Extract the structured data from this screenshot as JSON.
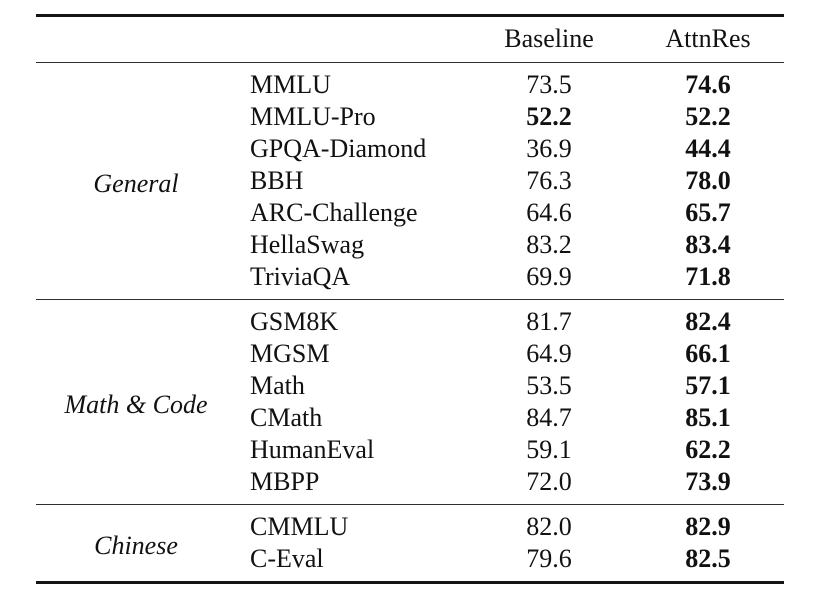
{
  "table": {
    "header": {
      "group_label": "",
      "benchmark_label": "",
      "baseline_label": "Baseline",
      "attnres_label": "AttnRes"
    },
    "sections": [
      {
        "group": "General",
        "rows": [
          {
            "name": "MMLU",
            "baseline": "73.5",
            "baseline_bold": false,
            "attnres": "74.6",
            "attnres_bold": true
          },
          {
            "name": "MMLU-Pro",
            "baseline": "52.2",
            "baseline_bold": true,
            "attnres": "52.2",
            "attnres_bold": true
          },
          {
            "name": "GPQA-Diamond",
            "baseline": "36.9",
            "baseline_bold": false,
            "attnres": "44.4",
            "attnres_bold": true
          },
          {
            "name": "BBH",
            "baseline": "76.3",
            "baseline_bold": false,
            "attnres": "78.0",
            "attnres_bold": true
          },
          {
            "name": "ARC-Challenge",
            "baseline": "64.6",
            "baseline_bold": false,
            "attnres": "65.7",
            "attnres_bold": true
          },
          {
            "name": "HellaSwag",
            "baseline": "83.2",
            "baseline_bold": false,
            "attnres": "83.4",
            "attnres_bold": true
          },
          {
            "name": "TriviaQA",
            "baseline": "69.9",
            "baseline_bold": false,
            "attnres": "71.8",
            "attnres_bold": true
          }
        ]
      },
      {
        "group": "Math & Code",
        "rows": [
          {
            "name": "GSM8K",
            "baseline": "81.7",
            "baseline_bold": false,
            "attnres": "82.4",
            "attnres_bold": true
          },
          {
            "name": "MGSM",
            "baseline": "64.9",
            "baseline_bold": false,
            "attnres": "66.1",
            "attnres_bold": true
          },
          {
            "name": "Math",
            "baseline": "53.5",
            "baseline_bold": false,
            "attnres": "57.1",
            "attnres_bold": true
          },
          {
            "name": "CMath",
            "baseline": "84.7",
            "baseline_bold": false,
            "attnres": "85.1",
            "attnres_bold": true
          },
          {
            "name": "HumanEval",
            "baseline": "59.1",
            "baseline_bold": false,
            "attnres": "62.2",
            "attnres_bold": true
          },
          {
            "name": "MBPP",
            "baseline": "72.0",
            "baseline_bold": false,
            "attnres": "73.9",
            "attnres_bold": true
          }
        ]
      },
      {
        "group": "Chinese",
        "rows": [
          {
            "name": "CMMLU",
            "baseline": "82.0",
            "baseline_bold": false,
            "attnres": "82.9",
            "attnres_bold": true
          },
          {
            "name": "C-Eval",
            "baseline": "79.6",
            "baseline_bold": false,
            "attnres": "82.5",
            "attnres_bold": true
          }
        ]
      }
    ]
  },
  "colors": {
    "text": "#111111",
    "rule": "#151515",
    "background": "#ffffff"
  }
}
